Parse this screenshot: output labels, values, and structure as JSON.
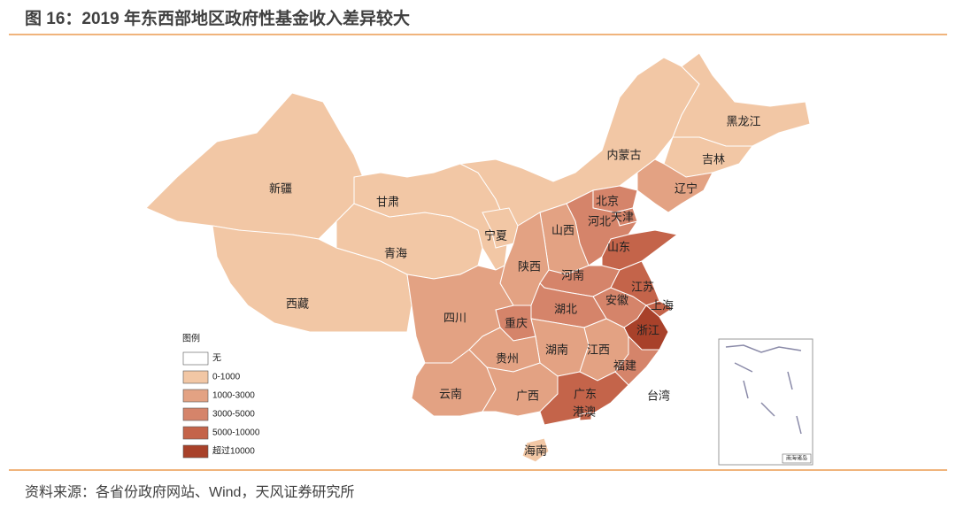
{
  "header": {
    "title": "图 16：2019 年东西部地区政府性基金收入差异较大"
  },
  "legend": {
    "title": "图例",
    "items": [
      {
        "label": "无",
        "color": "#ffffff"
      },
      {
        "label": "0-1000",
        "color": "#f2c7a5"
      },
      {
        "label": "1000-3000",
        "color": "#e3a283"
      },
      {
        "label": "3000-5000",
        "color": "#d5846a"
      },
      {
        "label": "5000-10000",
        "color": "#c4644a"
      },
      {
        "label": "超过10000",
        "color": "#a8412a"
      }
    ]
  },
  "provinces": [
    {
      "name": "新疆",
      "color": "#f2c7a5"
    },
    {
      "name": "西藏",
      "color": "#f2c7a5"
    },
    {
      "name": "青海",
      "color": "#f2c7a5"
    },
    {
      "name": "甘肃",
      "color": "#f2c7a5"
    },
    {
      "name": "内蒙古",
      "color": "#f2c7a5"
    },
    {
      "name": "宁夏",
      "color": "#f2c7a5"
    },
    {
      "name": "黑龙江",
      "color": "#f2c7a5"
    },
    {
      "name": "吉林",
      "color": "#f2c7a5"
    },
    {
      "name": "辽宁",
      "color": "#e3a283"
    },
    {
      "name": "北京",
      "color": "#d5846a"
    },
    {
      "name": "天津",
      "color": "#d5846a"
    },
    {
      "name": "河北",
      "color": "#d5846a"
    },
    {
      "name": "山西",
      "color": "#e3a283"
    },
    {
      "name": "陕西",
      "color": "#e3a283"
    },
    {
      "name": "山东",
      "color": "#c4644a"
    },
    {
      "name": "河南",
      "color": "#d5846a"
    },
    {
      "name": "江苏",
      "color": "#c4644a"
    },
    {
      "name": "安徽",
      "color": "#d5846a"
    },
    {
      "name": "上海",
      "color": "#c4644a"
    },
    {
      "name": "浙江",
      "color": "#a8412a"
    },
    {
      "name": "湖北",
      "color": "#d5846a"
    },
    {
      "name": "重庆",
      "color": "#d5846a"
    },
    {
      "name": "四川",
      "color": "#e3a283"
    },
    {
      "name": "湖南",
      "color": "#e3a283"
    },
    {
      "name": "江西",
      "color": "#e3a283"
    },
    {
      "name": "福建",
      "color": "#d5846a"
    },
    {
      "name": "贵州",
      "color": "#e3a283"
    },
    {
      "name": "云南",
      "color": "#e3a283"
    },
    {
      "name": "广西",
      "color": "#e3a283"
    },
    {
      "name": "广东",
      "color": "#c4644a"
    },
    {
      "name": "台湾",
      "color": "#ffffff"
    },
    {
      "name": "海南",
      "color": "#f2c7a5"
    },
    {
      "name": "港澳",
      "color": "#c4644a"
    }
  ],
  "inset": {
    "label": "南海诸岛"
  },
  "source": "资料来源：各省份政府网站、Wind，天风证券研究所"
}
